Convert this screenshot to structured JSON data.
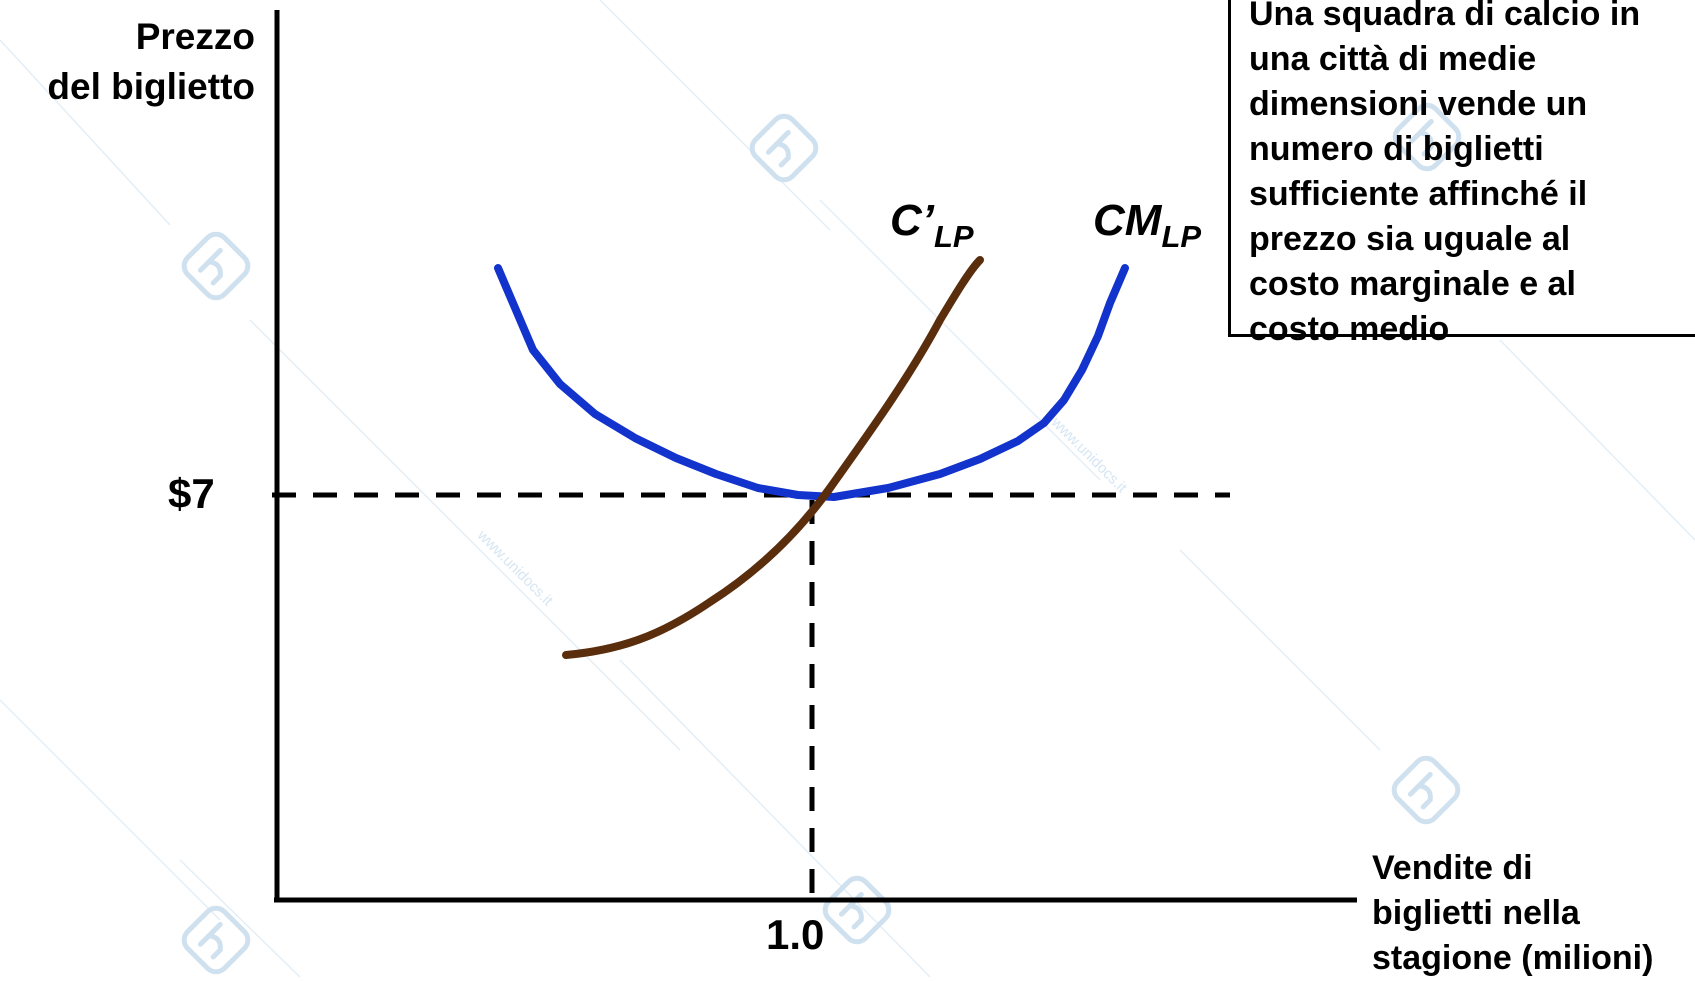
{
  "axes": {
    "y_label_lines": [
      "Prezzo",
      "del biglietto"
    ],
    "x_label_lines": [
      "Vendite di",
      "biglietti nella",
      "stagione (milioni)"
    ],
    "price_tick": "$7",
    "quantity_tick": "1.0"
  },
  "curves": {
    "marginal_cost": {
      "label_main": "C’",
      "label_sub": "LP",
      "color": "#5a2d0c"
    },
    "average_cost": {
      "label_main": "CM",
      "label_sub": "LP",
      "color": "#1233cc"
    }
  },
  "note": {
    "lines": [
      "Una squadra di calcio in",
      "una città di medie",
      "dimensioni vende un",
      "numero di biglietti",
      "sufficiente affinché il",
      "prezzo sia uguale al",
      "costo marginale  e al",
      "costo medio"
    ]
  },
  "watermark": {
    "text": "www.unidocs.it",
    "icon": "unidocs-logo-icon",
    "color": "#cfe0ef"
  }
}
